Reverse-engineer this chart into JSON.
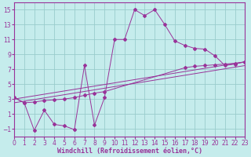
{
  "background_color": "#c5ecec",
  "line_color": "#993399",
  "grid_color": "#99cccc",
  "xlabel": "Windchill (Refroidissement éolien,°C)",
  "xlabel_fontsize": 6.0,
  "tick_fontsize": 5.5,
  "xlim": [
    0,
    23
  ],
  "ylim": [
    -2,
    16
  ],
  "yticks": [
    -1,
    1,
    3,
    5,
    7,
    9,
    11,
    13,
    15
  ],
  "xticks": [
    0,
    1,
    2,
    3,
    4,
    5,
    6,
    7,
    8,
    9,
    10,
    11,
    12,
    13,
    14,
    15,
    16,
    17,
    18,
    19,
    20,
    21,
    22,
    23
  ],
  "curve1_x": [
    0,
    1,
    2,
    3,
    4,
    5,
    6,
    7,
    8,
    9,
    10,
    11,
    12,
    13,
    14,
    15,
    16,
    17,
    18,
    19,
    20,
    21,
    22,
    23
  ],
  "curve1_y": [
    3.2,
    2.5,
    -1.2,
    1.5,
    -0.4,
    -0.6,
    -1.1,
    7.5,
    -0.5,
    3.2,
    11.0,
    11.0,
    15.0,
    14.2,
    15.0,
    13.0,
    10.8,
    10.2,
    9.8,
    9.7,
    8.8,
    7.5,
    7.7,
    8.0
  ],
  "curve2_x": [
    0,
    1,
    2,
    3,
    4,
    5,
    6,
    7,
    8,
    9,
    17,
    18,
    19,
    20,
    21,
    22,
    23
  ],
  "curve2_y": [
    3.2,
    2.5,
    2.6,
    2.8,
    2.9,
    3.0,
    3.2,
    3.5,
    3.8,
    4.0,
    7.2,
    7.4,
    7.5,
    7.6,
    7.7,
    7.8,
    8.0
  ],
  "line3_x": [
    0,
    23
  ],
  "line3_y": [
    2.5,
    7.5
  ],
  "line4_x": [
    0,
    23
  ],
  "line4_y": [
    3.0,
    8.0
  ],
  "marker": "D",
  "marker_size": 2.0
}
